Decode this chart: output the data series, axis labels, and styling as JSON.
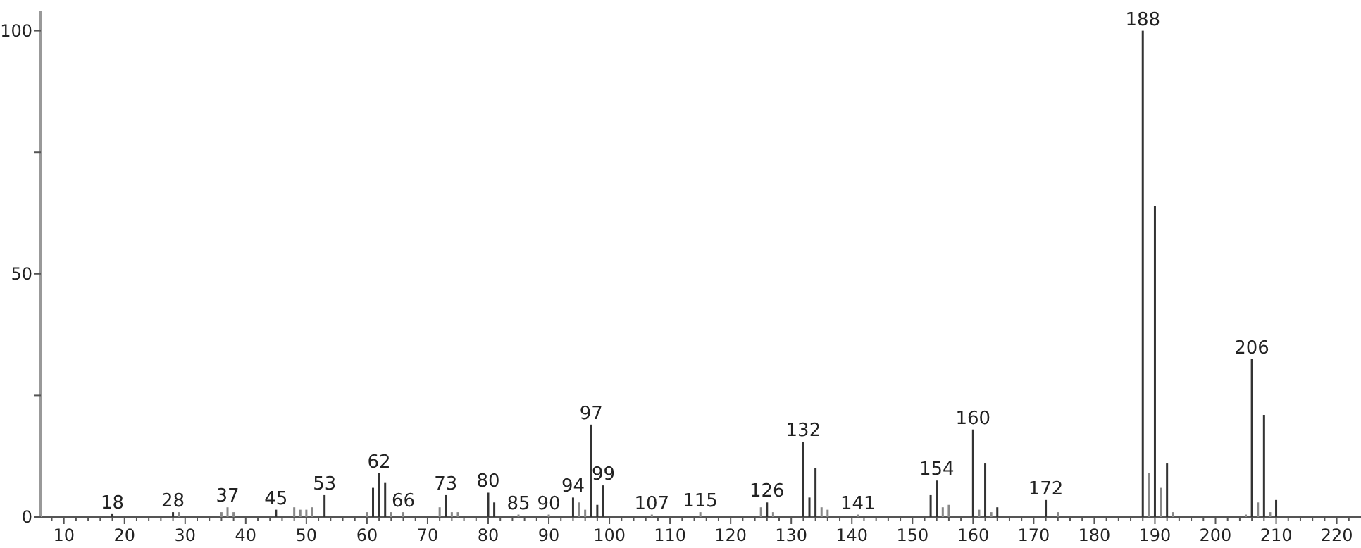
{
  "chart_data": {
    "type": "bar",
    "x": [
      18,
      28,
      29,
      36,
      37,
      38,
      45,
      48,
      49,
      50,
      51,
      53,
      60,
      61,
      62,
      63,
      64,
      66,
      72,
      73,
      74,
      75,
      80,
      81,
      85,
      90,
      94,
      95,
      96,
      97,
      98,
      99,
      107,
      115,
      125,
      126,
      127,
      132,
      133,
      134,
      135,
      136,
      141,
      153,
      154,
      155,
      156,
      160,
      161,
      162,
      163,
      164,
      172,
      174,
      188,
      189,
      190,
      191,
      192,
      193,
      205,
      206,
      207,
      208,
      209,
      210
    ],
    "values": [
      0.6,
      1,
      1,
      1,
      2,
      1,
      1.5,
      2,
      1.5,
      1.5,
      2,
      4.5,
      1,
      6,
      9,
      7,
      1,
      1,
      2,
      4.5,
      1,
      1,
      5,
      3,
      0.5,
      0.5,
      4,
      3,
      1.5,
      19,
      2.5,
      6.5,
      0.5,
      1,
      2,
      3,
      1,
      15.5,
      4,
      10,
      2,
      1.5,
      0.5,
      4.5,
      7.5,
      2,
      2.5,
      18,
      1.5,
      11,
      1,
      2,
      3.5,
      1,
      100,
      9,
      64,
      6,
      11,
      1,
      0.5,
      32.5,
      3,
      21,
      1,
      3.5
    ],
    "colors": [
      "#333333",
      "#333333",
      "#888888",
      "#888888",
      "#888888",
      "#888888",
      "#333333",
      "#888888",
      "#888888",
      "#888888",
      "#888888",
      "#333333",
      "#888888",
      "#333333",
      "#333333",
      "#333333",
      "#888888",
      "#888888",
      "#888888",
      "#333333",
      "#888888",
      "#888888",
      "#333333",
      "#333333",
      "#888888",
      "#888888",
      "#333333",
      "#888888",
      "#888888",
      "#333333",
      "#333333",
      "#333333",
      "#888888",
      "#888888",
      "#888888",
      "#333333",
      "#888888",
      "#333333",
      "#333333",
      "#333333",
      "#888888",
      "#888888",
      "#888888",
      "#333333",
      "#333333",
      "#888888",
      "#888888",
      "#333333",
      "#888888",
      "#333333",
      "#888888",
      "#333333",
      "#333333",
      "#888888",
      "#333333",
      "#888888",
      "#333333",
      "#888888",
      "#333333",
      "#888888",
      "#888888",
      "#333333",
      "#888888",
      "#333333",
      "#888888",
      "#333333"
    ],
    "xlim": [
      6.2,
      224
    ],
    "xticks": [
      {
        "value": 8,
        "label": null
      },
      10,
      {
        "value": 12,
        "label": null
      },
      {
        "value": 14,
        "label": null
      },
      {
        "value": 16,
        "label": null
      },
      {
        "value": 18,
        "label": null
      },
      20,
      {
        "value": 22,
        "label": null
      },
      {
        "value": 24,
        "label": null
      },
      {
        "value": 26,
        "label": null
      },
      {
        "value": 28,
        "label": null
      },
      30,
      {
        "value": 32,
        "label": null
      },
      {
        "value": 34,
        "label": null
      },
      {
        "value": 36,
        "label": null
      },
      {
        "value": 38,
        "label": null
      },
      40,
      {
        "value": 42,
        "label": null
      },
      {
        "value": 44,
        "label": null
      },
      {
        "value": 46,
        "label": null
      },
      {
        "value": 48,
        "label": null
      },
      50,
      {
        "value": 52,
        "label": null
      },
      {
        "value": 54,
        "label": null
      },
      {
        "value": 56,
        "label": null
      },
      {
        "value": 58,
        "label": null
      },
      60,
      {
        "value": 62,
        "label": null
      },
      {
        "value": 64,
        "label": null
      },
      {
        "value": 66,
        "label": null
      },
      {
        "value": 68,
        "label": null
      },
      70,
      {
        "value": 72,
        "label": null
      },
      {
        "value": 74,
        "label": null
      },
      {
        "value": 76,
        "label": null
      },
      {
        "value": 78,
        "label": null
      },
      80,
      {
        "value": 82,
        "label": null
      },
      {
        "value": 84,
        "label": null
      },
      {
        "value": 86,
        "label": null
      },
      {
        "value": 88,
        "label": null
      },
      90,
      {
        "value": 92,
        "label": null
      },
      {
        "value": 94,
        "label": null
      },
      {
        "value": 96,
        "label": null
      },
      {
        "value": 98,
        "label": null
      },
      100,
      {
        "value": 102,
        "label": null
      },
      {
        "value": 104,
        "label": null
      },
      {
        "value": 106,
        "label": null
      },
      {
        "value": 108,
        "label": null
      },
      110,
      {
        "value": 112,
        "label": null
      },
      {
        "value": 114,
        "label": null
      },
      {
        "value": 116,
        "label": null
      },
      {
        "value": 118,
        "label": null
      },
      120,
      {
        "value": 122,
        "label": null
      },
      {
        "value": 124,
        "label": null
      },
      {
        "value": 126,
        "label": null
      },
      {
        "value": 128,
        "label": null
      },
      130,
      {
        "value": 132,
        "label": null
      },
      {
        "value": 134,
        "label": null
      },
      {
        "value": 136,
        "label": null
      },
      {
        "value": 138,
        "label": null
      },
      140,
      {
        "value": 142,
        "label": null
      },
      {
        "value": 144,
        "label": null
      },
      {
        "value": 146,
        "label": null
      },
      {
        "value": 148,
        "label": null
      },
      150,
      {
        "value": 152,
        "label": null
      },
      {
        "value": 154,
        "label": null
      },
      {
        "value": 156,
        "label": null
      },
      {
        "value": 158,
        "label": null
      },
      160,
      {
        "value": 162,
        "label": null
      },
      {
        "value": 164,
        "label": null
      },
      {
        "value": 166,
        "label": null
      },
      {
        "value": 168,
        "label": null
      },
      170,
      {
        "value": 172,
        "label": null
      },
      {
        "value": 174,
        "label": null
      },
      {
        "value": 176,
        "label": null
      },
      {
        "value": 178,
        "label": null
      },
      180,
      {
        "value": 182,
        "label": null
      },
      {
        "value": 184,
        "label": null
      },
      {
        "value": 186,
        "label": null
      },
      {
        "value": 188,
        "label": null
      },
      190,
      {
        "value": 192,
        "label": null
      },
      {
        "value": 194,
        "label": null
      },
      {
        "value": 196,
        "label": null
      },
      {
        "value": 198,
        "label": null
      },
      200,
      {
        "value": 202,
        "label": null
      },
      {
        "value": 204,
        "label": null
      },
      {
        "value": 206,
        "label": null
      },
      {
        "value": 208,
        "label": null
      },
      210,
      {
        "value": 212,
        "label": null
      },
      {
        "value": 214,
        "label": null
      },
      {
        "value": 216,
        "label": null
      },
      {
        "value": 218,
        "label": null
      },
      220,
      {
        "value": 222,
        "label": null
      }
    ],
    "ylim": [
      0,
      104
    ],
    "yticks": [
      0,
      {
        "value": 25,
        "label": null
      },
      50,
      {
        "value": 75,
        "label": null
      },
      100
    ],
    "annotations": [
      {
        "text": "18",
        "x": 18,
        "y": 0.6
      },
      {
        "text": "28",
        "x": 28,
        "y": 1
      },
      {
        "text": "37",
        "x": 37,
        "y": 2
      },
      {
        "text": "45",
        "x": 45,
        "y": 1.5
      },
      {
        "text": "53",
        "x": 53,
        "y": 4.5
      },
      {
        "text": "62",
        "x": 62,
        "y": 9
      },
      {
        "text": "66",
        "x": 66,
        "y": 1
      },
      {
        "text": "73",
        "x": 73,
        "y": 4.5
      },
      {
        "text": "80",
        "x": 80,
        "y": 5
      },
      {
        "text": "85",
        "x": 85,
        "y": 0.5
      },
      {
        "text": "90",
        "x": 90,
        "y": 0.5
      },
      {
        "text": "94",
        "x": 94,
        "y": 4
      },
      {
        "text": "97",
        "x": 97,
        "y": 19
      },
      {
        "text": "99",
        "x": 99,
        "y": 6.5
      },
      {
        "text": "107",
        "x": 107,
        "y": 0.5
      },
      {
        "text": "115",
        "x": 115,
        "y": 1
      },
      {
        "text": "126",
        "x": 126,
        "y": 3
      },
      {
        "text": "132",
        "x": 132,
        "y": 15.5
      },
      {
        "text": "141",
        "x": 141,
        "y": 0.5
      },
      {
        "text": "154",
        "x": 154,
        "y": 7.5
      },
      {
        "text": "160",
        "x": 160,
        "y": 18
      },
      {
        "text": "172",
        "x": 172,
        "y": 3.5
      },
      {
        "text": "188",
        "x": 188,
        "y": 100
      },
      {
        "text": "206",
        "x": 206,
        "y": 32.5
      }
    ],
    "grid": false
  }
}
